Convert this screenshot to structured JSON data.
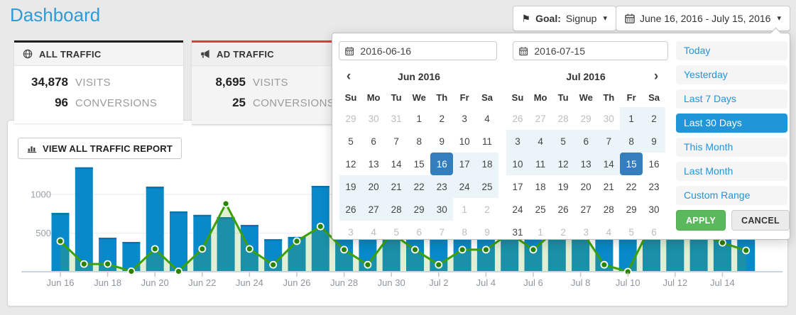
{
  "page": {
    "title": "Dashboard"
  },
  "header": {
    "goal_button": {
      "label_bold": "Goal:",
      "value": "Signup"
    },
    "date_range_button": {
      "label": "June 16, 2016 - July 15, 2016"
    }
  },
  "icons": {
    "flag": "⚑",
    "caret": "▾",
    "prev": "‹",
    "next": "›",
    "names": [
      "flag-icon",
      "caret-down-icon",
      "calendar-icon",
      "globe-icon",
      "megaphone-icon",
      "bar-chart-icon",
      "chevron-left-icon",
      "chevron-right-icon"
    ]
  },
  "stat_cards": [
    {
      "title": "ALL TRAFFIC",
      "icon": "globe-icon",
      "accent_color": "#1e1e1e",
      "metrics": [
        {
          "value": "34,878",
          "label": "VISITS"
        },
        {
          "value": "96",
          "label": "CONVERSIONS"
        }
      ]
    },
    {
      "title": "AD TRAFFIC",
      "icon": "megaphone-icon",
      "accent_color": "#e03b3b",
      "metrics": [
        {
          "value": "8,695",
          "label": "VISITS"
        },
        {
          "value": "25",
          "label": "CONVERSIONS"
        }
      ]
    }
  ],
  "toolbar": {
    "view_report_label": "VIEW ALL TRAFFIC REPORT",
    "icon": "bar-chart-icon"
  },
  "chart_data": {
    "type": "bar",
    "note": "blue bars = visits; green line+area = conversions series in chart display units; middle bars partially hidden by popup (values estimated)",
    "x": [
      "Jun 16",
      "Jun 17",
      "Jun 18",
      "Jun 19",
      "Jun 20",
      "Jun 21",
      "Jun 22",
      "Jun 23",
      "Jun 24",
      "Jun 25",
      "Jun 26",
      "Jun 27",
      "Jun 28",
      "Jun 29",
      "Jun 30",
      "Jul 1",
      "Jul 2",
      "Jul 3",
      "Jul 4",
      "Jul 5",
      "Jul 6",
      "Jul 7",
      "Jul 8",
      "Jul 9",
      "Jul 10",
      "Jul 11",
      "Jul 12",
      "Jul 13",
      "Jul 14",
      "Jul 15"
    ],
    "series": [
      {
        "name": "visits",
        "type": "bar",
        "color": "#0889c9",
        "values": [
          760,
          1350,
          440,
          385,
          1100,
          780,
          735,
          705,
          605,
          420,
          450,
          1110,
          900,
          700,
          800,
          650,
          520,
          700,
          800,
          750,
          900,
          650,
          550,
          600,
          700,
          850,
          750,
          600,
          500,
          480
        ]
      },
      {
        "name": "conversions",
        "type": "line",
        "color": "#3ca008",
        "values": [
          395,
          100,
          100,
          5,
          295,
          5,
          295,
          880,
          295,
          90,
          395,
          585,
          285,
          90,
          500,
          285,
          90,
          285,
          285,
          500,
          285,
          550,
          550,
          90,
          0,
          620,
          620,
          500,
          375,
          275
        ]
      }
    ],
    "x_tick_labels": [
      "Jun 16",
      "Jun 18",
      "Jun 20",
      "Jun 22",
      "Jun 24",
      "Jun 26",
      "Jun 28",
      "Jun 30",
      "Jul 2",
      "Jul 4",
      "Jul 6",
      "Jul 8",
      "Jul 10",
      "Jul 12",
      "Jul 14"
    ],
    "y_ticks": [
      500,
      1000
    ],
    "ylim": [
      0,
      1400
    ],
    "grid": "horizontal",
    "legend": "none"
  },
  "datepicker": {
    "start_input": "2016-06-16",
    "end_input": "2016-07-15",
    "weekdays": [
      "Su",
      "Mo",
      "Tu",
      "We",
      "Th",
      "Fr",
      "Sa"
    ],
    "months": [
      {
        "title": "Jun 2016",
        "weeks": [
          [
            [
              "29",
              "m"
            ],
            [
              "30",
              "m"
            ],
            [
              "31",
              "m"
            ],
            [
              "1",
              "n"
            ],
            [
              "2",
              "n"
            ],
            [
              "3",
              "n"
            ],
            [
              "4",
              "n"
            ]
          ],
          [
            [
              "5",
              "n"
            ],
            [
              "6",
              "n"
            ],
            [
              "7",
              "n"
            ],
            [
              "8",
              "n"
            ],
            [
              "9",
              "n"
            ],
            [
              "10",
              "n"
            ],
            [
              "11",
              "n"
            ]
          ],
          [
            [
              "12",
              "n"
            ],
            [
              "13",
              "n"
            ],
            [
              "14",
              "n"
            ],
            [
              "15",
              "n"
            ],
            [
              "16",
              "s"
            ],
            [
              "17",
              "r"
            ],
            [
              "18",
              "r"
            ]
          ],
          [
            [
              "19",
              "r"
            ],
            [
              "20",
              "r"
            ],
            [
              "21",
              "r"
            ],
            [
              "22",
              "r"
            ],
            [
              "23",
              "r"
            ],
            [
              "24",
              "r"
            ],
            [
              "25",
              "r"
            ]
          ],
          [
            [
              "26",
              "r"
            ],
            [
              "27",
              "r"
            ],
            [
              "28",
              "r"
            ],
            [
              "29",
              "r"
            ],
            [
              "30",
              "r"
            ],
            [
              "1",
              "m"
            ],
            [
              "2",
              "m"
            ]
          ],
          [
            [
              "3",
              "m"
            ],
            [
              "4",
              "m"
            ],
            [
              "5",
              "m"
            ],
            [
              "6",
              "m"
            ],
            [
              "7",
              "m"
            ],
            [
              "8",
              "m"
            ],
            [
              "9",
              "m"
            ]
          ]
        ]
      },
      {
        "title": "Jul 2016",
        "weeks": [
          [
            [
              "26",
              "m"
            ],
            [
              "27",
              "m"
            ],
            [
              "28",
              "m"
            ],
            [
              "29",
              "m"
            ],
            [
              "30",
              "m"
            ],
            [
              "1",
              "r"
            ],
            [
              "2",
              "r"
            ]
          ],
          [
            [
              "3",
              "r"
            ],
            [
              "4",
              "r"
            ],
            [
              "5",
              "r"
            ],
            [
              "6",
              "r"
            ],
            [
              "7",
              "r"
            ],
            [
              "8",
              "r"
            ],
            [
              "9",
              "r"
            ]
          ],
          [
            [
              "10",
              "r"
            ],
            [
              "11",
              "r"
            ],
            [
              "12",
              "r"
            ],
            [
              "13",
              "r"
            ],
            [
              "14",
              "r"
            ],
            [
              "15",
              "s"
            ],
            [
              "16",
              "n"
            ]
          ],
          [
            [
              "17",
              "n"
            ],
            [
              "18",
              "n"
            ],
            [
              "19",
              "n"
            ],
            [
              "20",
              "n"
            ],
            [
              "21",
              "n"
            ],
            [
              "22",
              "n"
            ],
            [
              "23",
              "n"
            ]
          ],
          [
            [
              "24",
              "n"
            ],
            [
              "25",
              "n"
            ],
            [
              "26",
              "n"
            ],
            [
              "27",
              "n"
            ],
            [
              "28",
              "n"
            ],
            [
              "29",
              "n"
            ],
            [
              "30",
              "n"
            ]
          ],
          [
            [
              "31",
              "n"
            ],
            [
              "1",
              "m"
            ],
            [
              "2",
              "m"
            ],
            [
              "3",
              "m"
            ],
            [
              "4",
              "m"
            ],
            [
              "5",
              "m"
            ],
            [
              "6",
              "m"
            ]
          ]
        ]
      }
    ],
    "ranges": [
      "Today",
      "Yesterday",
      "Last 7 Days",
      "Last 30 Days",
      "This Month",
      "Last Month",
      "Custom Range"
    ],
    "active_range": "Last 30 Days",
    "apply_label": "APPLY",
    "cancel_label": "CANCEL"
  },
  "colors": {
    "title_blue": "#2e9bd6",
    "bar_blue": "#0889c9",
    "bar_cap": "#0a74ae",
    "line_green": "#3ca008",
    "dot_green": "#2b8304",
    "area_green_rgba": "rgba(103,176,40,0.2)",
    "range_active_blue": "#2095d8",
    "selected_day_blue": "#357ebd",
    "inrange_blue": "#ebf4f8",
    "apply_green": "#5cb85c",
    "ad_red": "#e03b3b",
    "all_black": "#1e1e1e"
  }
}
